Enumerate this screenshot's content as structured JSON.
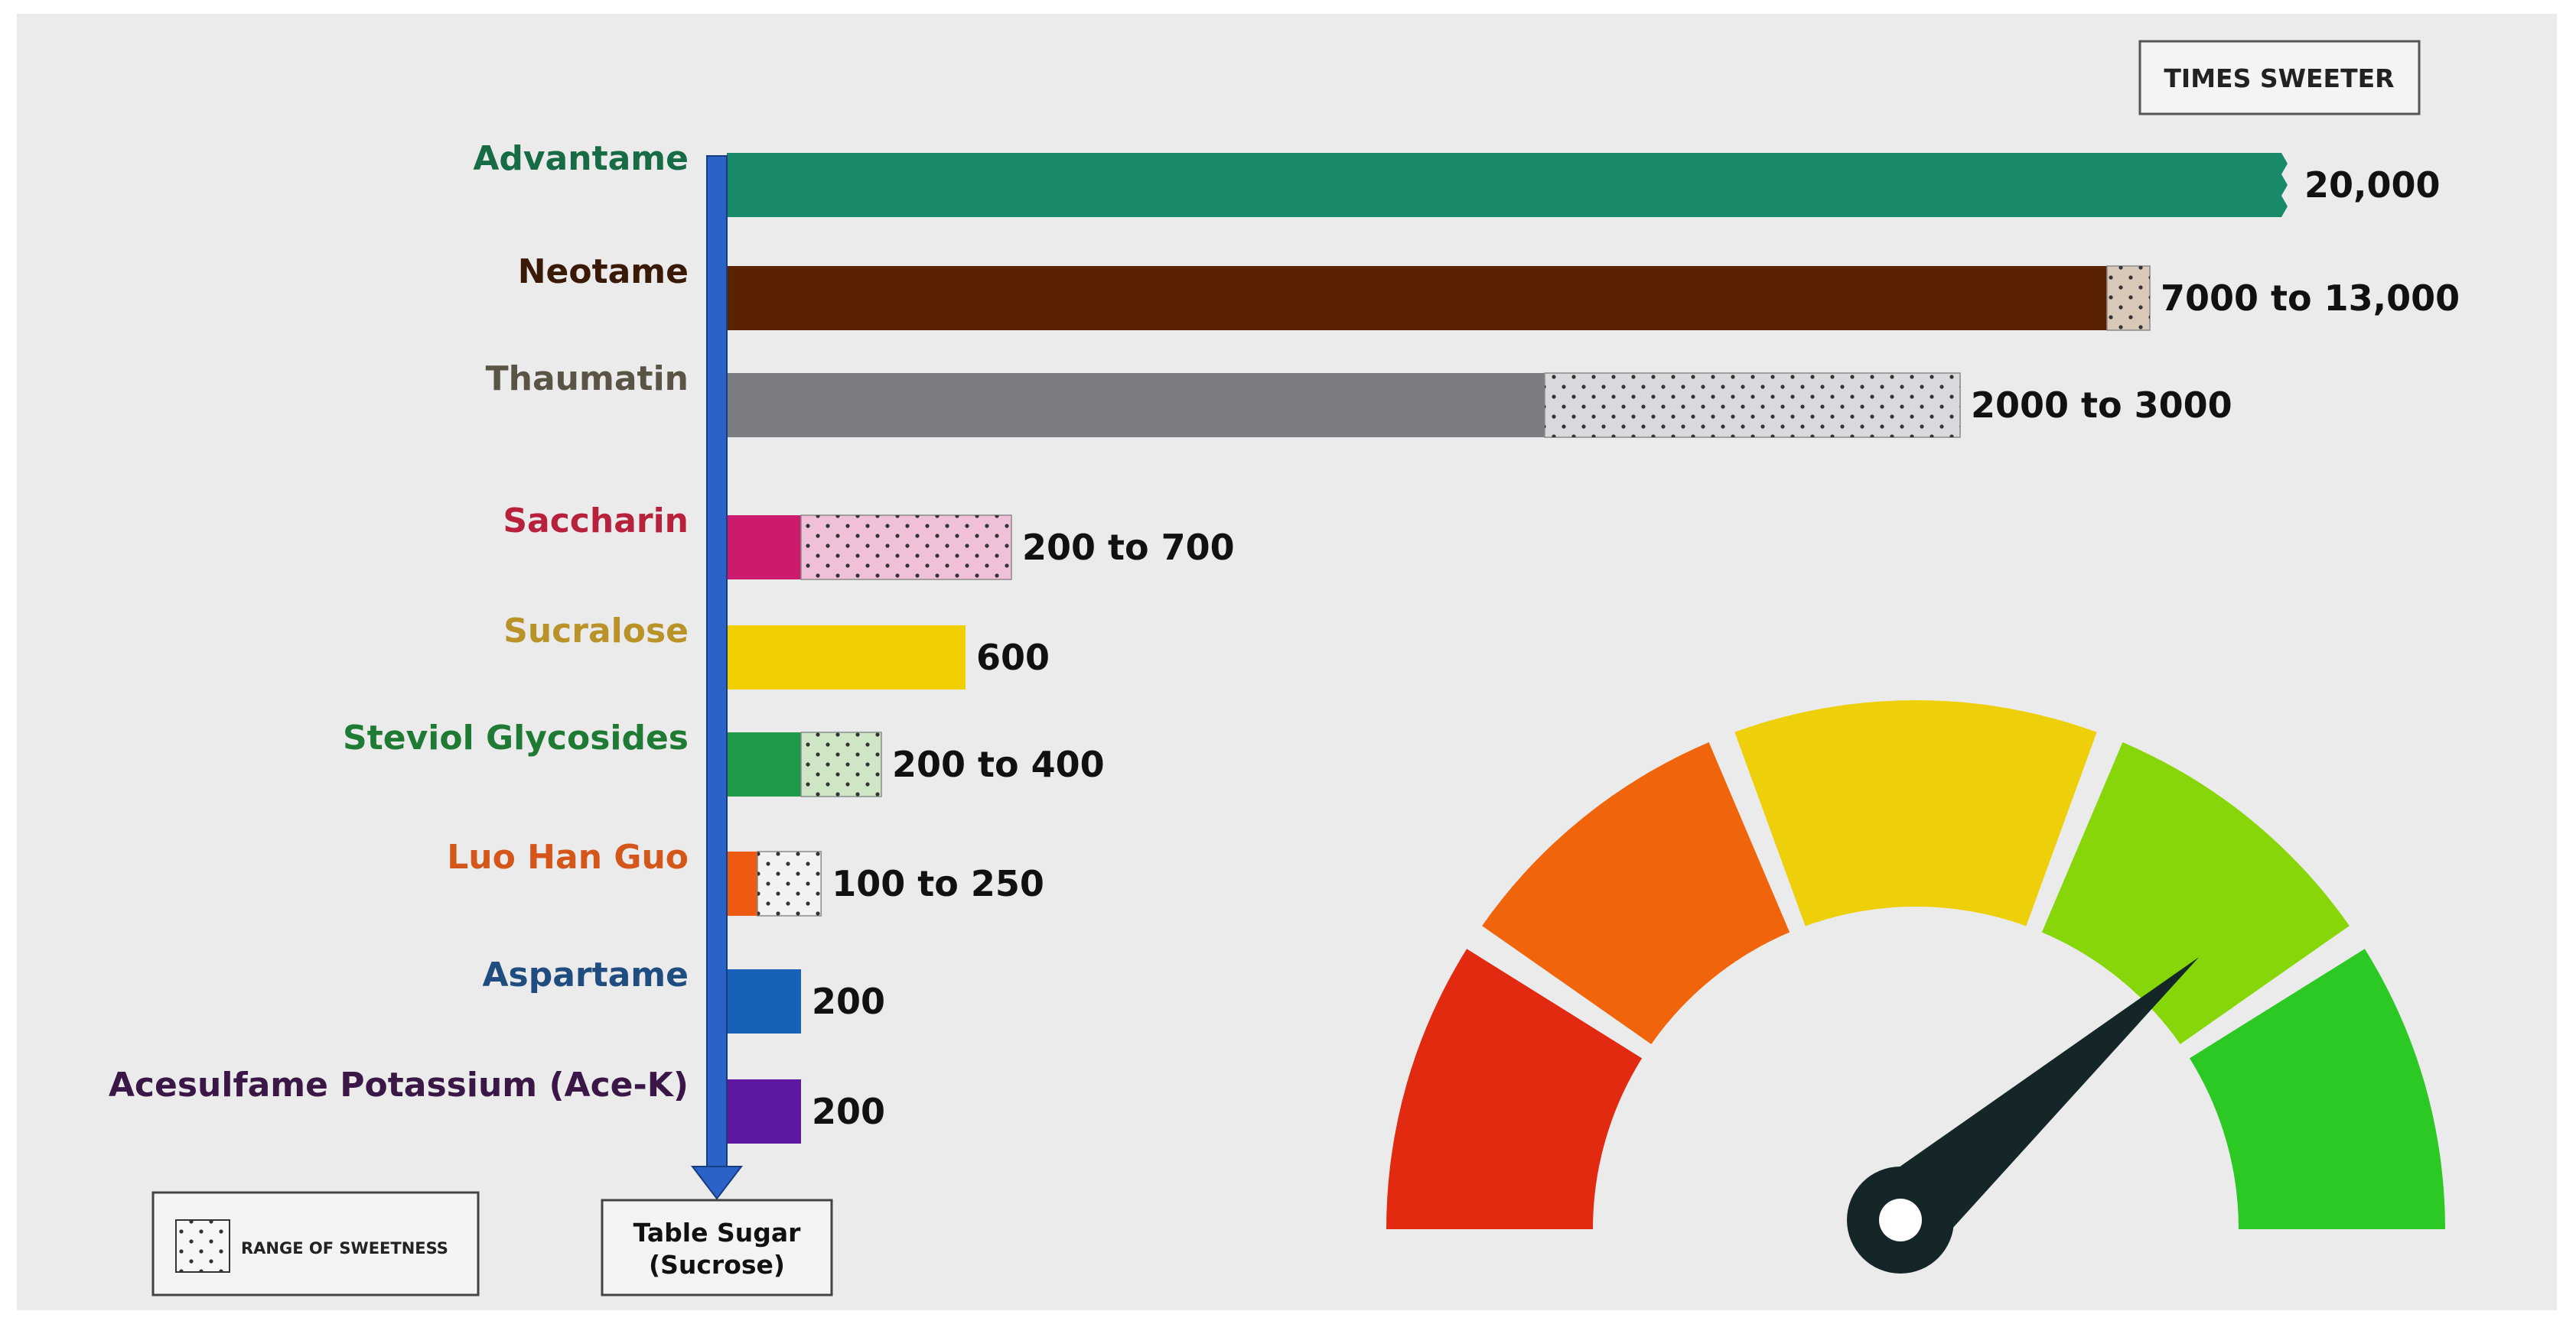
{
  "chart_data": {
    "type": "bar",
    "unit_label": "TIMES SWEETER",
    "baseline_label_line1": "Table Sugar",
    "baseline_label_line2": "(Sucrose)",
    "legend_label": "RANGE OF SWEETNESS",
    "axis_min": 0,
    "axis_max": 20000,
    "axis_break_on": "Advantame",
    "items": [
      {
        "name": "Advantame",
        "label": "20,000",
        "low": 20000,
        "high": 20000,
        "color": "#188a6a",
        "pattern": "#188a6a",
        "label_color": "#176b45"
      },
      {
        "name": "Neotame",
        "label": "7000 to 13,000",
        "low": 7000,
        "high": 13000,
        "color": "#5b2200",
        "pattern": "#d8c8b8",
        "label_color": "#3a1a06"
      },
      {
        "name": "Thaumatin",
        "label": "2000 to 3000",
        "low": 2000,
        "high": 3000,
        "color": "#7b7d80",
        "pattern": "#d8dadd",
        "label_color": "#5a5446"
      },
      {
        "name": "Saccharin",
        "label": "200 to 700",
        "low": 200,
        "high": 700,
        "color": "#cc1a6c",
        "pattern": "#f0c0d8",
        "label_color": "#b8213c"
      },
      {
        "name": "Sucralose",
        "label": "600",
        "low": 600,
        "high": 600,
        "color": "#f0d000",
        "pattern": "#f0d000",
        "label_color": "#b99327"
      },
      {
        "name": "Steviol Glycosides",
        "label": "200 to 400",
        "low": 200,
        "high": 400,
        "color": "#1e9a48",
        "pattern": "#cfe6c6",
        "label_color": "#1f7a34"
      },
      {
        "name": "Luo Han Guo",
        "label": "100 to 250",
        "low": 100,
        "high": 250,
        "color": "#ef5a12",
        "pattern": "#f2f2f2",
        "label_color": "#d4561a"
      },
      {
        "name": "Aspartame",
        "label": "200",
        "low": 200,
        "high": 200,
        "color": "#1761b8",
        "pattern": "#1761b8",
        "label_color": "#1f4d80"
      },
      {
        "name": "Acesulfame Potassium (Ace-K)",
        "label": "200",
        "low": 200,
        "high": 200,
        "color": "#5e17a0",
        "pattern": "#5e17a0",
        "label_color": "#3a1746"
      }
    ]
  },
  "gauge": {
    "segment_colors": [
      "#e22a10",
      "#f0650c",
      "#eed00a",
      "#86d60a",
      "#2cc824"
    ],
    "needle_color": "#142628",
    "needle_level": 0.77
  }
}
